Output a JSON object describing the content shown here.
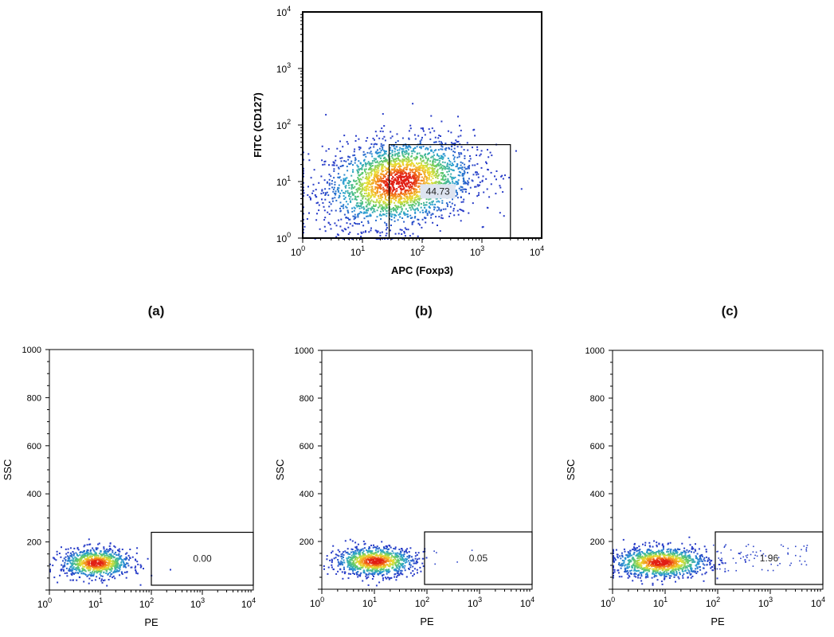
{
  "panel_labels": [
    "(a)",
    "(b)",
    "(c)"
  ],
  "chart_data": [
    {
      "id": "foxp3-cd127",
      "type": "scatter",
      "xlabel": "APC (Foxp3)",
      "ylabel": "FITC (CD127)",
      "x_scale": "log",
      "y_scale": "log",
      "xlim": [
        1,
        10000
      ],
      "ylim": [
        1,
        10000
      ],
      "x_ticks": [
        "10^0",
        "10^1",
        "10^2",
        "10^3",
        "10^4"
      ],
      "y_ticks": [
        "10^0",
        "10^1",
        "10^2",
        "10^3",
        "10^4"
      ],
      "density_center": [
        40,
        10
      ],
      "gate": {
        "x_range": [
          28,
          3000
        ],
        "y_range": [
          1,
          45
        ],
        "percent": "44.73"
      }
    },
    {
      "id": "panel-a",
      "type": "scatter",
      "xlabel": "PE",
      "ylabel": "SSC",
      "x_scale": "log",
      "y_scale": "linear",
      "xlim": [
        1,
        10000
      ],
      "ylim": [
        0,
        1000
      ],
      "x_ticks": [
        "10^0",
        "10^1",
        "10^2",
        "10^3",
        "10^4"
      ],
      "y_ticks": [
        "200",
        "400",
        "600",
        "800",
        "1000"
      ],
      "density_center": [
        8,
        115
      ],
      "gate": {
        "x_range": [
          100,
          10000
        ],
        "y_range": [
          20,
          240
        ],
        "percent": "0.00"
      }
    },
    {
      "id": "panel-b",
      "type": "scatter",
      "xlabel": "PE",
      "ylabel": "SSC",
      "x_scale": "log",
      "y_scale": "linear",
      "xlim": [
        1,
        10000
      ],
      "ylim": [
        0,
        1000
      ],
      "x_ticks": [
        "10^0",
        "10^1",
        "10^2",
        "10^3",
        "10^4"
      ],
      "y_ticks": [
        "200",
        "400",
        "600",
        "800",
        "1000"
      ],
      "density_center": [
        10,
        120
      ],
      "gate": {
        "x_range": [
          90,
          10000
        ],
        "y_range": [
          20,
          240
        ],
        "percent": "0.05"
      }
    },
    {
      "id": "panel-c",
      "type": "scatter",
      "xlabel": "PE",
      "ylabel": "SSC",
      "x_scale": "log",
      "y_scale": "linear",
      "xlim": [
        1,
        10000
      ],
      "ylim": [
        0,
        1000
      ],
      "x_ticks": [
        "10^0",
        "10^1",
        "10^2",
        "10^3",
        "10^4"
      ],
      "y_ticks": [
        "200",
        "400",
        "600",
        "800",
        "1000"
      ],
      "density_center": [
        8,
        115
      ],
      "gate": {
        "x_range": [
          90,
          10000
        ],
        "y_range": [
          20,
          240
        ],
        "percent": "1.96"
      }
    }
  ]
}
